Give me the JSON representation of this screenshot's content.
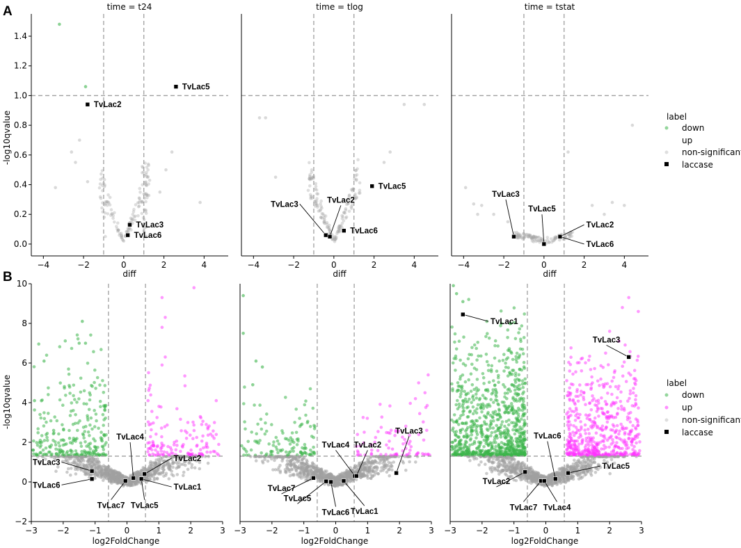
{
  "colors": {
    "down": "#3cb44b",
    "up": "#ff33ff",
    "nonsig": "#a0a0a0",
    "laccase": "#000000"
  },
  "legend": {
    "title": "label",
    "items": [
      "down",
      "up",
      "non-significant",
      "laccase"
    ]
  },
  "panels": {
    "A": "A",
    "B": "B"
  },
  "chart_data": [
    {
      "type": "scatter",
      "row": "A",
      "title": "time = t24",
      "xlabel": "diff",
      "ylabel": "-log10qvalue",
      "xlim": [
        -4.6,
        5.2
      ],
      "ylim": [
        -0.08,
        1.55
      ],
      "xticks": [
        -4,
        -2,
        0,
        2,
        4
      ],
      "yticks": [
        0.0,
        0.2,
        0.4,
        0.6,
        0.8,
        1.0,
        1.2,
        1.4
      ],
      "vlines": [
        -1,
        1
      ],
      "hline": 1,
      "seed": 11,
      "shape": "v",
      "series": {
        "down": [
          [
            -3.2,
            1.48
          ],
          [
            -1.9,
            1.06
          ]
        ],
        "up": [],
        "nonsig": [
          [
            -2.6,
            0.62
          ],
          [
            -2.4,
            0.55
          ],
          [
            -2.2,
            0.7
          ],
          [
            -1.8,
            0.42
          ],
          [
            1.8,
            0.35
          ],
          [
            2.1,
            0.5
          ],
          [
            2.4,
            0.62
          ],
          [
            3.8,
            0.28
          ],
          [
            -3.4,
            0.38
          ]
        ]
      },
      "laccase": [
        {
          "name": "TvLac5",
          "x": 2.6,
          "y": 1.06,
          "lx": 2.6,
          "ly": 1.06,
          "align": "right"
        },
        {
          "name": "TvLac2",
          "x": -1.8,
          "y": 0.94,
          "lx": -1.8,
          "ly": 0.94,
          "align": "right"
        },
        {
          "name": "TvLac3",
          "x": 0.3,
          "y": 0.13,
          "lx": 0.3,
          "ly": 0.13,
          "align": "right"
        },
        {
          "name": "TvLac6",
          "x": 0.2,
          "y": 0.06,
          "lx": 0.2,
          "ly": 0.06,
          "align": "right"
        }
      ]
    },
    {
      "type": "scatter",
      "row": "A",
      "title": "time = tlog",
      "xlabel": "diff",
      "ylabel": "",
      "xlim": [
        -4.6,
        5.2
      ],
      "ylim": [
        -0.08,
        1.55
      ],
      "xticks": [
        -4,
        -2,
        0,
        2,
        4
      ],
      "yticks": [],
      "vlines": [
        -1,
        1
      ],
      "hline": 1,
      "seed": 23,
      "shape": "v",
      "series": {
        "down": [],
        "up": [],
        "nonsig": [
          [
            -3.7,
            0.85
          ],
          [
            -3.4,
            0.85
          ],
          [
            3.5,
            0.94
          ],
          [
            4.5,
            0.94
          ],
          [
            2.8,
            0.62
          ],
          [
            2.5,
            0.55
          ],
          [
            -2.9,
            0.45
          ]
        ]
      },
      "laccase": [
        {
          "name": "TvLac5",
          "x": 1.9,
          "y": 0.39,
          "lx": 1.9,
          "ly": 0.39,
          "align": "right"
        },
        {
          "name": "TvLac3",
          "x": -0.4,
          "y": 0.06,
          "lx": -1.7,
          "ly": 0.27,
          "align": "left"
        },
        {
          "name": "TvLac2",
          "x": -0.2,
          "y": 0.05,
          "lx": 0.35,
          "ly": 0.26,
          "align": "leftc"
        },
        {
          "name": "TvLac6",
          "x": 0.5,
          "y": 0.09,
          "lx": 0.5,
          "ly": 0.09,
          "align": "right"
        }
      ]
    },
    {
      "type": "scatter",
      "row": "A",
      "title": "time = tstat",
      "xlabel": "diff",
      "ylabel": "",
      "xlim": [
        -4.6,
        5.2
      ],
      "ylim": [
        -0.08,
        1.55
      ],
      "xticks": [
        -4,
        -2,
        0,
        2,
        4
      ],
      "yticks": [],
      "vlines": [
        -1,
        1
      ],
      "hline": 1,
      "seed": 37,
      "shape": "flat",
      "series": {
        "down": [],
        "up": [],
        "nonsig": [
          [
            -3.9,
            0.38
          ],
          [
            -3.5,
            0.27
          ],
          [
            -3.1,
            0.26
          ],
          [
            -2.5,
            0.2
          ],
          [
            -1.8,
            0.15
          ],
          [
            1.2,
            0.62
          ],
          [
            2.4,
            0.26
          ],
          [
            3.0,
            0.2
          ],
          [
            3.4,
            0.28
          ],
          [
            4.0,
            0.26
          ],
          [
            4.4,
            0.8
          ],
          [
            -3.3,
            0.2
          ]
        ]
      },
      "laccase": [
        {
          "name": "TvLac3",
          "x": -1.5,
          "y": 0.05,
          "lx": -1.9,
          "ly": 0.3,
          "align": "leftc"
        },
        {
          "name": "TvLac5",
          "x": 0.0,
          "y": 0.0,
          "lx": -0.1,
          "ly": 0.2,
          "align": "leftc"
        },
        {
          "name": "TvLac2",
          "x": 0.8,
          "y": 0.05,
          "lx": 2.0,
          "ly": 0.13,
          "align": "right"
        },
        {
          "name": "TvLac6",
          "x": 0.8,
          "y": 0.05,
          "lx": 2.0,
          "ly": 0.0,
          "align": "right"
        }
      ]
    },
    {
      "type": "scatter",
      "row": "B",
      "title": "",
      "xlabel": "log2FoldChange",
      "ylabel": "-log10qvalue",
      "xlim": [
        -3,
        3
      ],
      "ylim": [
        -2,
        10
      ],
      "xticks": [
        -3,
        -2,
        -1,
        0,
        1,
        2,
        3
      ],
      "yticks": [
        -2,
        0,
        2,
        4,
        6,
        8,
        10
      ],
      "vlines": [
        -0.58,
        0.58
      ],
      "hline": 1.3,
      "seed": 101,
      "density": {
        "down": 260,
        "up": 140,
        "nonsig": 900,
        "downMax": 8,
        "upMax": 6,
        "spread": 3
      },
      "series": {
        "down": [
          [
            -2.6,
            6.1
          ],
          [
            -2.9,
            4.1
          ],
          [
            -1.4,
            8.1
          ],
          [
            -1.3,
            7.0
          ],
          [
            -1.5,
            7.0
          ],
          [
            -1.8,
            2.2
          ],
          [
            -2.3,
            2.6
          ]
        ],
        "up": [
          [
            2.1,
            9.8
          ],
          [
            1.1,
            9.3
          ],
          [
            1.2,
            8.3
          ],
          [
            1.1,
            7.8
          ],
          [
            1.2,
            6.3
          ],
          [
            1.1,
            5.9
          ],
          [
            2.8,
            4.1
          ],
          [
            2.3,
            3.3
          ]
        ],
        "nonsig": []
      },
      "laccase": [
        {
          "name": "TvLac3",
          "x": -1.1,
          "y": 0.55,
          "lx": -2.05,
          "ly": 1.0,
          "align": "left"
        },
        {
          "name": "TvLac6",
          "x": -1.1,
          "y": 0.15,
          "lx": -2.05,
          "ly": -0.15,
          "align": "left"
        },
        {
          "name": "TvLac7",
          "x": -0.05,
          "y": 0.05,
          "lx": -0.5,
          "ly": -0.9,
          "align": "centerc"
        },
        {
          "name": "TvLac4",
          "x": 0.2,
          "y": 0.2,
          "lx": 0.1,
          "ly": 2.0,
          "align": "leftc"
        },
        {
          "name": "TvLac5",
          "x": 0.45,
          "y": 0.15,
          "lx": 0.55,
          "ly": -0.9,
          "align": "centerc"
        },
        {
          "name": "TvLac2",
          "x": 0.55,
          "y": 0.4,
          "lx": 1.4,
          "ly": 1.2,
          "align": "right"
        },
        {
          "name": "TvLac1",
          "x": 0.45,
          "y": 0.15,
          "lx": 1.4,
          "ly": -0.25,
          "align": "right"
        }
      ]
    },
    {
      "type": "scatter",
      "row": "B",
      "title": "",
      "xlabel": "log2FoldChange",
      "ylabel": "",
      "xlim": [
        -3,
        3
      ],
      "ylim": [
        -2,
        10
      ],
      "xticks": [
        -3,
        -2,
        -1,
        0,
        1,
        2,
        3
      ],
      "yticks": [],
      "vlines": [
        -0.58,
        0.58
      ],
      "hline": 1.3,
      "seed": 202,
      "density": {
        "down": 120,
        "up": 80,
        "nonsig": 900,
        "downMax": 6,
        "upMax": 4.5,
        "spread": 3
      },
      "series": {
        "down": [
          [
            -2.9,
            9.4
          ],
          [
            -2.9,
            7.5
          ],
          [
            -2.5,
            6.1
          ],
          [
            -2.3,
            5.8
          ],
          [
            -2.6,
            4.9
          ]
        ],
        "up": [
          [
            2.9,
            5.4
          ],
          [
            2.6,
            5.0
          ],
          [
            2.8,
            4.5
          ],
          [
            2.5,
            4.2
          ]
        ],
        "nonsig": []
      },
      "laccase": [
        {
          "name": "TvLac7",
          "x": -0.7,
          "y": 0.2,
          "lx": -1.7,
          "ly": -0.6,
          "align": "leftc"
        },
        {
          "name": "TvLac5",
          "x": -0.3,
          "y": 0.03,
          "lx": -1.2,
          "ly": -1.1,
          "align": "leftc"
        },
        {
          "name": "TvLac6",
          "x": -0.15,
          "y": 0.0,
          "lx": 0.0,
          "ly": -1.25,
          "align": "centerc"
        },
        {
          "name": "TvLac1",
          "x": 0.25,
          "y": 0.05,
          "lx": 0.9,
          "ly": -1.2,
          "align": "centerc"
        },
        {
          "name": "TvLac4",
          "x": 0.6,
          "y": 0.3,
          "lx": 0.0,
          "ly": 1.6,
          "align": "leftc"
        },
        {
          "name": "TvLac2",
          "x": 0.65,
          "y": 0.3,
          "lx": 1.0,
          "ly": 1.6,
          "align": "leftc"
        },
        {
          "name": "TvLac3",
          "x": 1.9,
          "y": 0.45,
          "lx": 2.3,
          "ly": 2.3,
          "align": "leftc"
        }
      ]
    },
    {
      "type": "scatter",
      "row": "B",
      "title": "",
      "xlabel": "log2FoldChange",
      "ylabel": "",
      "xlim": [
        -3,
        3
      ],
      "ylim": [
        -2,
        10
      ],
      "xticks": [
        -3,
        -2,
        -1,
        0,
        1,
        2,
        3
      ],
      "yticks": [],
      "vlines": [
        -0.58,
        0.58
      ],
      "hline": 1.3,
      "seed": 303,
      "density": {
        "down": 900,
        "up": 560,
        "nonsig": 900,
        "downMax": 9.5,
        "upMax": 7.5,
        "spread": 3
      },
      "series": {
        "down": [
          [
            -2.9,
            9.9
          ],
          [
            -2.8,
            9.5
          ],
          [
            -2.6,
            9.1
          ]
        ],
        "up": [
          [
            2.6,
            9.3
          ],
          [
            2.4,
            8.8
          ],
          [
            2.9,
            8.6
          ],
          [
            2.0,
            7.6
          ],
          [
            2.3,
            7.1
          ]
        ],
        "nonsig": []
      },
      "laccase": [
        {
          "name": "TvLac1",
          "x": -2.6,
          "y": 8.45,
          "lx": -1.8,
          "ly": 8.1,
          "align": "right"
        },
        {
          "name": "TvLac3",
          "x": 2.6,
          "y": 6.3,
          "lx": 1.9,
          "ly": 6.9,
          "align": "leftc"
        },
        {
          "name": "TvLac2",
          "x": -0.65,
          "y": 0.5,
          "lx": -1.55,
          "ly": -0.25,
          "align": "leftc"
        },
        {
          "name": "TvLac7",
          "x": -0.15,
          "y": 0.05,
          "lx": -0.7,
          "ly": -1.0,
          "align": "centerc"
        },
        {
          "name": "TvLac4",
          "x": -0.05,
          "y": 0.05,
          "lx": 0.35,
          "ly": -1.0,
          "align": "centerc"
        },
        {
          "name": "TvLac6",
          "x": 0.3,
          "y": 0.15,
          "lx": 0.05,
          "ly": 2.05,
          "align": "leftc"
        },
        {
          "name": "TvLac5",
          "x": 0.7,
          "y": 0.45,
          "lx": 1.7,
          "ly": 0.8,
          "align": "right"
        }
      ]
    }
  ]
}
